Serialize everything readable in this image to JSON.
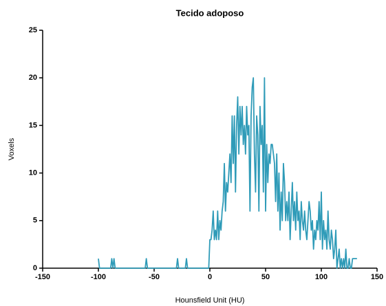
{
  "chart_data": {
    "type": "line",
    "title": "Tecido adoposo",
    "x_label": "Hounsfield Unit (HU)",
    "y_label": "Voxels",
    "color": "#2f9bb8",
    "x": [
      -100,
      -99,
      -89,
      -88,
      -87,
      -86,
      -85,
      -58,
      -57,
      -56,
      -30,
      -29,
      -28,
      -22,
      -21,
      -20,
      -1,
      0,
      1,
      2,
      3,
      4,
      5,
      6,
      7,
      8,
      9,
      10,
      11,
      12,
      13,
      14,
      15,
      16,
      17,
      18,
      19,
      20,
      21,
      22,
      23,
      24,
      25,
      26,
      27,
      28,
      29,
      30,
      31,
      32,
      33,
      34,
      35,
      36,
      37,
      38,
      39,
      40,
      41,
      42,
      43,
      44,
      45,
      46,
      47,
      48,
      49,
      50,
      51,
      52,
      53,
      54,
      55,
      56,
      57,
      58,
      59,
      60,
      61,
      62,
      63,
      64,
      65,
      66,
      67,
      68,
      69,
      70,
      71,
      72,
      73,
      74,
      75,
      76,
      77,
      78,
      79,
      80,
      81,
      82,
      83,
      84,
      85,
      86,
      87,
      88,
      89,
      90,
      91,
      92,
      93,
      94,
      95,
      96,
      97,
      98,
      99,
      100,
      101,
      102,
      103,
      104,
      105,
      106,
      107,
      108,
      109,
      110,
      111,
      112,
      113,
      114,
      115,
      116,
      117,
      118,
      119,
      120,
      121,
      122,
      123,
      124,
      125,
      126,
      127,
      128,
      129,
      130,
      131,
      132
    ],
    "values": [
      1,
      0,
      0,
      1,
      0,
      1,
      0,
      0,
      1,
      0,
      0,
      1,
      0,
      0,
      1,
      0,
      0,
      3,
      3,
      4,
      6,
      3,
      4,
      3,
      6,
      3,
      5,
      4,
      6,
      7,
      11,
      6,
      9,
      8,
      10,
      12,
      9,
      16,
      11,
      16,
      8,
      15,
      18,
      12,
      17,
      14,
      17,
      13,
      15,
      12,
      17,
      14,
      15,
      6,
      16,
      19,
      20,
      12,
      8,
      16,
      14,
      6,
      17,
      13,
      15,
      8,
      20,
      6,
      13,
      9,
      12,
      11,
      13,
      13,
      12,
      11,
      7,
      12,
      6,
      10,
      4,
      8,
      5,
      11,
      9,
      5,
      7,
      5,
      8,
      3,
      6,
      9,
      5,
      7,
      4,
      8,
      5,
      6,
      3,
      7,
      5,
      4,
      6,
      4,
      3,
      5,
      7,
      6,
      4,
      5,
      2,
      4,
      3,
      5,
      4,
      7,
      3,
      8,
      2,
      5,
      3,
      4,
      2,
      6,
      3,
      2,
      4,
      3,
      1,
      2,
      4,
      0,
      1,
      2,
      0,
      1,
      0,
      1,
      0,
      2,
      0,
      0,
      1,
      0,
      0,
      1,
      1,
      1,
      1,
      1
    ],
    "xlim": [
      -150,
      150
    ],
    "xticks": [
      -150,
      -100,
      -50,
      0,
      50,
      100,
      150
    ],
    "ylim": [
      0,
      25
    ],
    "yticks": [
      0,
      5,
      10,
      15,
      20,
      25
    ]
  }
}
